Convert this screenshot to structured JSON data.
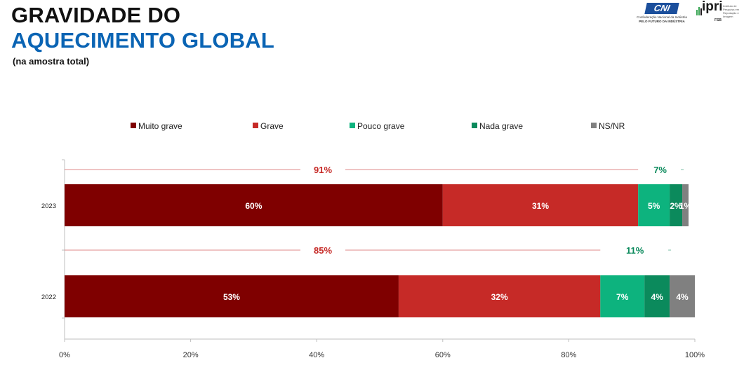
{
  "header": {
    "title_line1": "GRAVIDADE DO",
    "title_line2": "AQUECIMENTO GLOBAL",
    "subtitle": "(na amostra total)"
  },
  "logos": {
    "cni_text": "CNI",
    "cni_subtitle": "Confederação Nacional da Indústria",
    "cni_tagline": "PELO FUTURO DA INDÚSTRIA",
    "ipri_text": "ipri",
    "ipri_subtitle": "Instituto de Pesquisa em Reputação e Imagem",
    "fsb_text": "FSB"
  },
  "colors": {
    "muito_grave": "#7f0000",
    "grave": "#c62a27",
    "pouco_grave": "#0db37e",
    "nada_grave": "#0b8a5c",
    "ns_nr": "#808080",
    "grave_total_text": "#c62a27",
    "pouco_total_text": "#0b8a5c"
  },
  "chart_data": {
    "type": "bar",
    "orientation": "horizontal",
    "stacked": true,
    "title": "GRAVIDADE DO AQUECIMENTO GLOBAL",
    "subtitle": "(na amostra total)",
    "categories": [
      "2023",
      "2022"
    ],
    "series": [
      {
        "name": "Muito grave",
        "color": "#7f0000",
        "values": [
          60,
          53
        ],
        "labels": [
          "60%",
          "53%"
        ]
      },
      {
        "name": "Grave",
        "color": "#c62a27",
        "values": [
          31,
          32
        ],
        "labels": [
          "31%",
          "32%"
        ]
      },
      {
        "name": "Pouco grave",
        "color": "#0db37e",
        "values": [
          5,
          7
        ],
        "labels": [
          "5%",
          "7%"
        ]
      },
      {
        "name": "Nada grave",
        "color": "#0b8a5c",
        "values": [
          2,
          4
        ],
        "labels": [
          "2%",
          "4%"
        ]
      },
      {
        "name": "NS/NR",
        "color": "#808080",
        "values": [
          1,
          4
        ],
        "labels": [
          "1%",
          "4%"
        ]
      }
    ],
    "group_totals": [
      {
        "category": "2023",
        "grave_total": "91%",
        "pouco_total": "7%",
        "grave_sum": 91,
        "pouco_sum": 7
      },
      {
        "category": "2022",
        "grave_total": "85%",
        "pouco_total": "11%",
        "grave_sum": 85,
        "pouco_sum": 11
      }
    ],
    "xlim": [
      0,
      100
    ],
    "x_ticks": [
      0,
      20,
      40,
      60,
      80,
      100
    ],
    "x_tick_labels": [
      "0%",
      "20%",
      "40%",
      "60%",
      "80%",
      "100%"
    ],
    "legend_position": "top",
    "grid": false
  }
}
